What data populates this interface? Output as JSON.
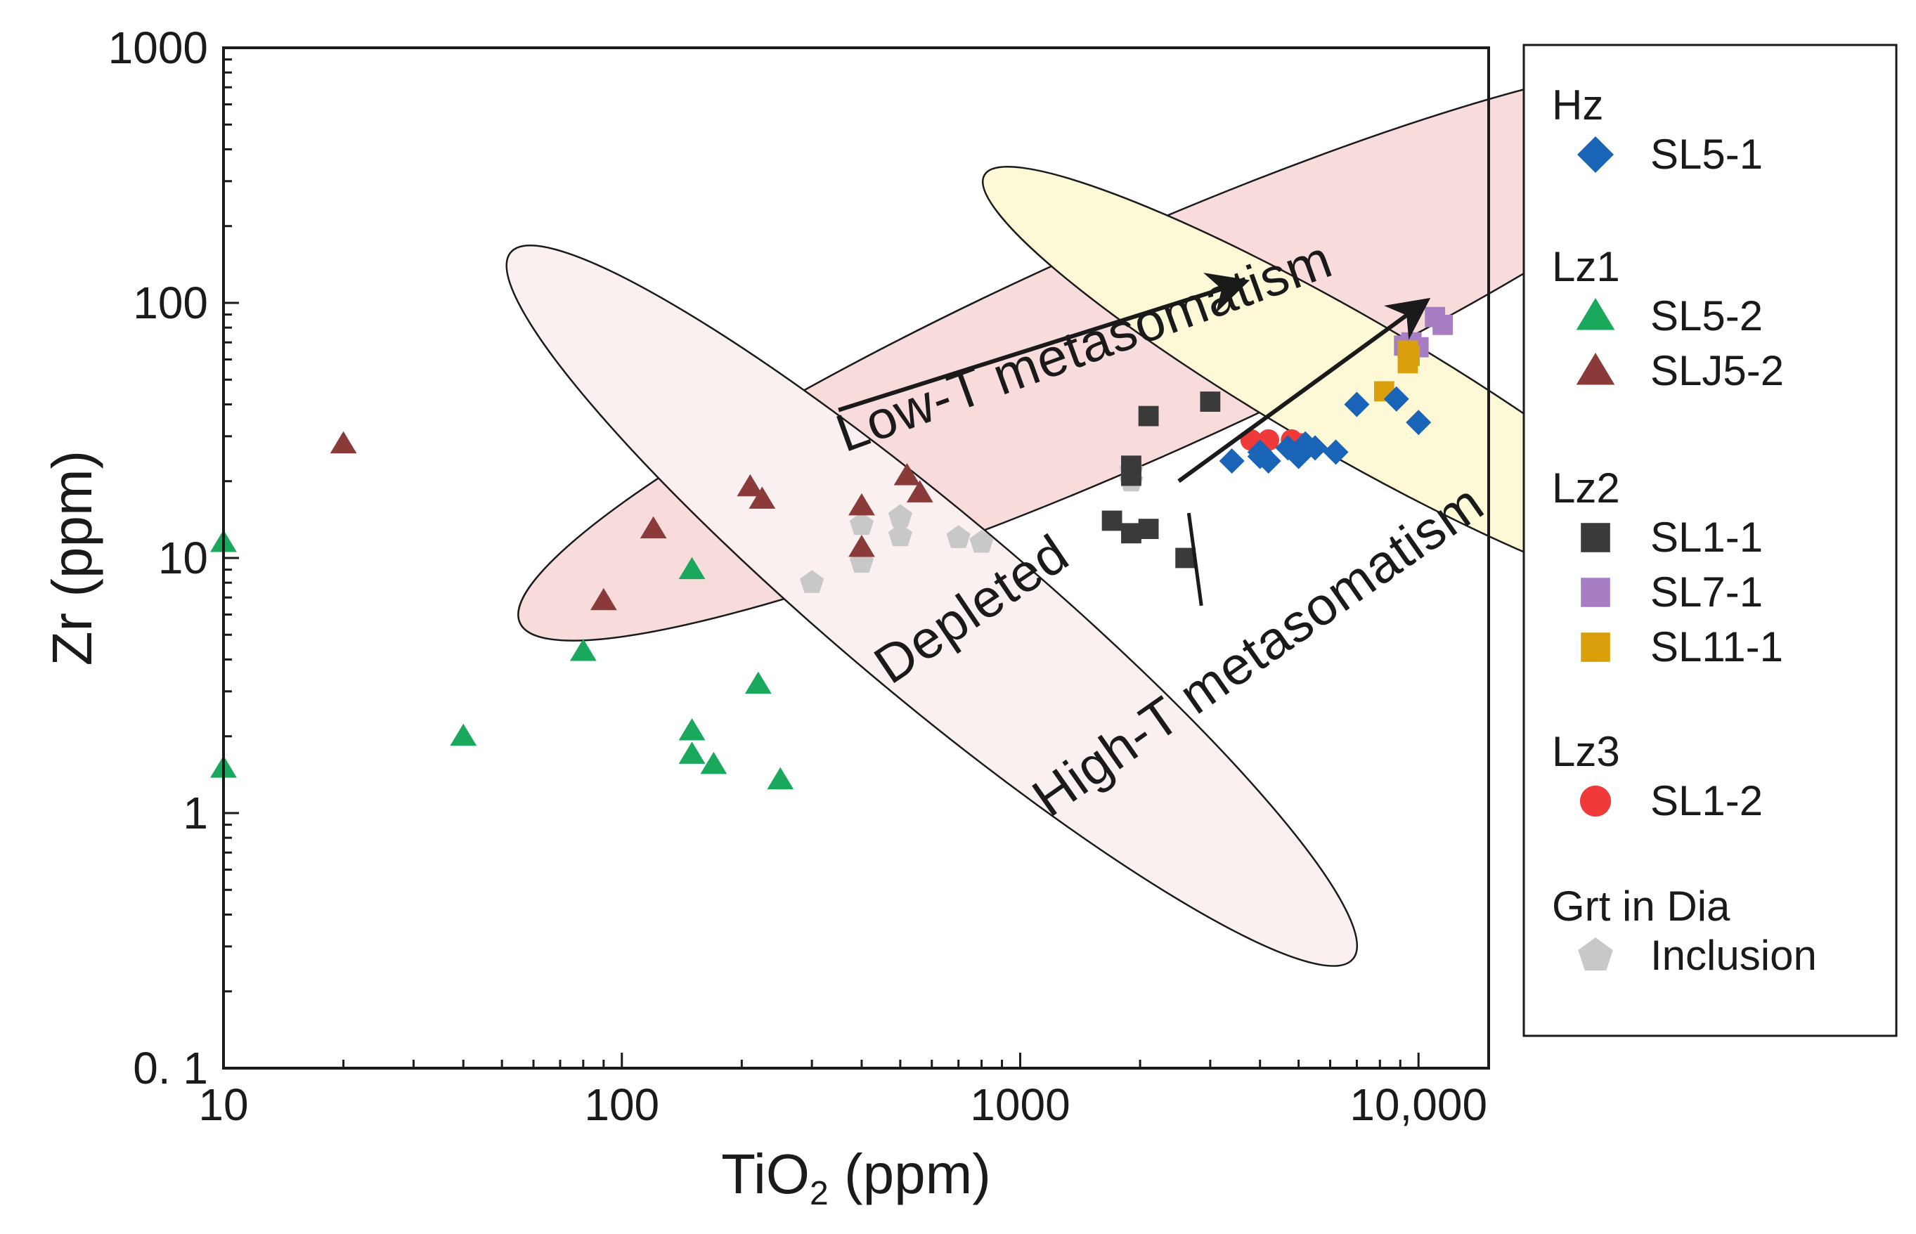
{
  "chart_data": {
    "type": "scatter",
    "title": "",
    "xlabel": {
      "main": "TiO",
      "sub": "2",
      "unit": " (ppm)"
    },
    "ylabel": "Zr (ppm)",
    "xscale": "log",
    "yscale": "log",
    "xlim": [
      10,
      15000
    ],
    "ylim": [
      0.1,
      1000
    ],
    "xticks": [
      {
        "value": 10,
        "label": "10"
      },
      {
        "value": 100,
        "label": "100"
      },
      {
        "value": 1000,
        "label": "1000"
      },
      {
        "value": 10000,
        "label": "10,000"
      }
    ],
    "yticks": [
      {
        "value": 0.1,
        "label": "0. 1"
      },
      {
        "value": 1,
        "label": "1"
      },
      {
        "value": 10,
        "label": "10"
      },
      {
        "value": 100,
        "label": "100"
      },
      {
        "value": 1000,
        "label": "1000"
      }
    ],
    "fields": [
      {
        "name": "low-t-field",
        "label": "Low-T metasomatism",
        "fill": "#f8dcdc",
        "center": [
          1900,
          65
        ],
        "semi_x_decades": 1.68,
        "semi_y_decades": 0.43,
        "angle_deg": 24
      },
      {
        "name": "depleted-field",
        "label": "Depleted",
        "fill": "#fbf0f0",
        "center": [
          600,
          6.5
        ],
        "semi_x_decades": 1.38,
        "semi_y_decades": 0.36,
        "angle_deg": -40
      },
      {
        "name": "high-t-field",
        "label": "High-T metasomatism",
        "fill": "#fdf9d6",
        "center": [
          6600,
          48
        ],
        "semi_x_decades": 1.05,
        "semi_y_decades": 0.27,
        "angle_deg": -30
      }
    ],
    "field_labels": [
      {
        "field": "low-t-field",
        "text": "Low-T metasomatism",
        "at": [
          1500,
          58
        ],
        "angle_deg": -20
      },
      {
        "field": "depleted-field",
        "text": "Depleted",
        "at": [
          800,
          5.5
        ],
        "angle_deg": -34
      },
      {
        "field": "high-t-field",
        "text": "High-T metasomatism",
        "at": [
          4200,
          3.8
        ],
        "angle_deg": -35
      }
    ],
    "arrows": [
      {
        "name": "low-t-trend-arrow",
        "from": [
          350,
          38
        ],
        "to": [
          3600,
          120
        ]
      },
      {
        "name": "high-t-trend-arrow",
        "from": [
          2500,
          20
        ],
        "to": [
          10300,
          100
        ]
      }
    ],
    "callouts": [
      {
        "name": "high-t-label-leader",
        "from": [
          2650,
          15
        ],
        "to": [
          2850,
          6.5
        ]
      }
    ],
    "legend": {
      "position": "right",
      "groups": [
        {
          "label": "Hz",
          "entries": [
            {
              "series": "SL5-1"
            }
          ]
        },
        {
          "label": "Lz1",
          "entries": [
            {
              "series": "SL5-2"
            },
            {
              "series": "SLJ5-2"
            }
          ]
        },
        {
          "label": "Lz2",
          "entries": [
            {
              "series": "SL1-1"
            },
            {
              "series": "SL7-1"
            },
            {
              "series": "SL11-1"
            }
          ]
        },
        {
          "label": "Lz3",
          "entries": [
            {
              "series": "SL1-2"
            }
          ]
        },
        {
          "label": "Grt in Dia",
          "entries": [
            {
              "series": "Inclusion"
            }
          ]
        }
      ]
    },
    "series": [
      {
        "name": "SL5-1",
        "marker": "diamond",
        "color": "#1a64b8",
        "points": [
          [
            3400,
            24
          ],
          [
            4000,
            26
          ],
          [
            4200,
            24
          ],
          [
            4700,
            27
          ],
          [
            5000,
            25
          ],
          [
            5500,
            27
          ],
          [
            6200,
            26
          ],
          [
            7000,
            40
          ],
          [
            8800,
            42
          ],
          [
            10000,
            34
          ],
          [
            4000,
            25
          ],
          [
            5200,
            28
          ]
        ]
      },
      {
        "name": "SL5-2",
        "marker": "triangle",
        "color": "#1aa85c",
        "points": [
          [
            10,
            11.5
          ],
          [
            10,
            1.5
          ],
          [
            40,
            2.0
          ],
          [
            80,
            4.3
          ],
          [
            150,
            9.0
          ],
          [
            150,
            2.1
          ],
          [
            150,
            1.7
          ],
          [
            170,
            1.55
          ],
          [
            220,
            3.2
          ],
          [
            250,
            1.35
          ]
        ]
      },
      {
        "name": "SLJ5-2",
        "marker": "triangle",
        "color": "#8b3a3a",
        "points": [
          [
            20,
            28
          ],
          [
            90,
            6.8
          ],
          [
            120,
            13
          ],
          [
            210,
            19
          ],
          [
            225,
            17
          ],
          [
            400,
            16
          ],
          [
            400,
            11
          ],
          [
            520,
            21
          ],
          [
            560,
            18
          ]
        ]
      },
      {
        "name": "SL1-1",
        "marker": "square",
        "color": "#3a3a3a",
        "points": [
          [
            1700,
            14
          ],
          [
            1900,
            12.5
          ],
          [
            1900,
            21
          ],
          [
            1900,
            23
          ],
          [
            2100,
            13
          ],
          [
            2100,
            36
          ],
          [
            2600,
            10
          ],
          [
            3000,
            41
          ]
        ]
      },
      {
        "name": "SL7-1",
        "marker": "square",
        "color": "#a77ec4",
        "points": [
          [
            9200,
            68
          ],
          [
            9600,
            70
          ],
          [
            10000,
            67
          ],
          [
            11000,
            88
          ],
          [
            11500,
            82
          ]
        ]
      },
      {
        "name": "SL11-1",
        "marker": "square",
        "color": "#d9a00c",
        "points": [
          [
            8200,
            45
          ],
          [
            9400,
            58
          ],
          [
            9400,
            65
          ],
          [
            9500,
            62
          ]
        ]
      },
      {
        "name": "SL1-2",
        "marker": "circle",
        "color": "#f03a3a",
        "points": [
          [
            3800,
            29
          ],
          [
            4200,
            29
          ],
          [
            4800,
            29
          ],
          [
            5100,
            28
          ]
        ]
      },
      {
        "name": "Inclusion",
        "marker": "pentagon",
        "color": "#c8c8c8",
        "points": [
          [
            300,
            8
          ],
          [
            400,
            9.6
          ],
          [
            400,
            13.5
          ],
          [
            500,
            12.2
          ],
          [
            500,
            14.5
          ],
          [
            700,
            12
          ],
          [
            800,
            11.5
          ],
          [
            1900,
            22
          ],
          [
            1900,
            20
          ]
        ]
      }
    ]
  }
}
